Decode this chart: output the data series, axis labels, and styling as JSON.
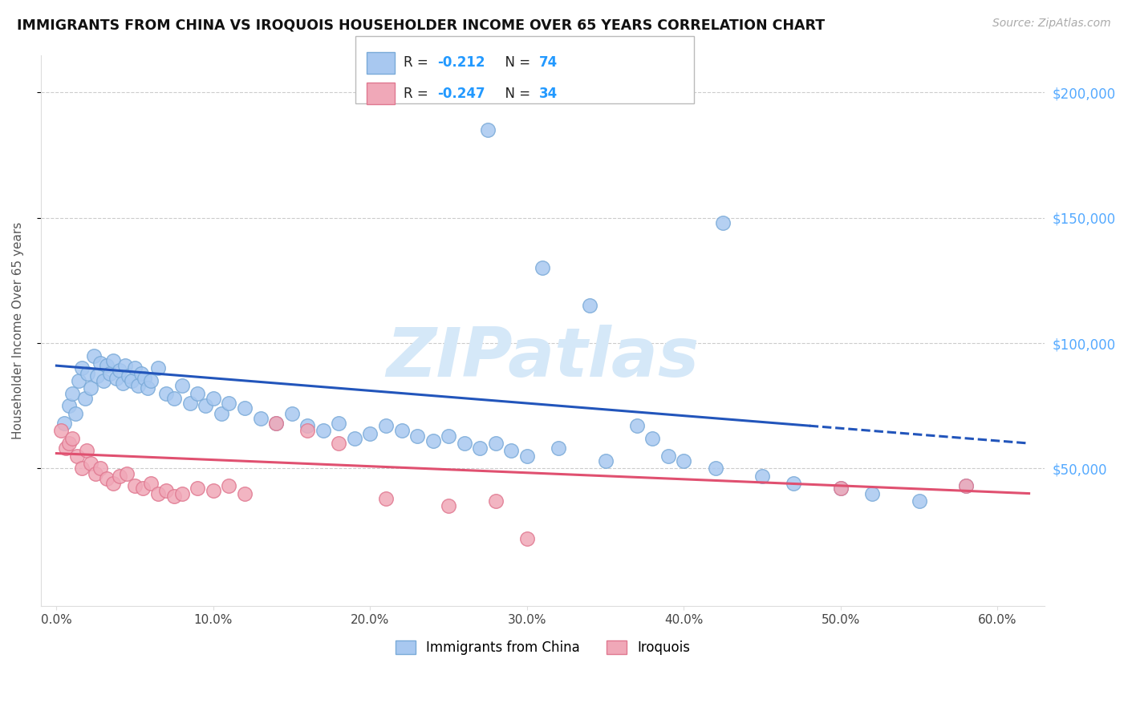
{
  "title": "IMMIGRANTS FROM CHINA VS IROQUOIS HOUSEHOLDER INCOME OVER 65 YEARS CORRELATION CHART",
  "source": "Source: ZipAtlas.com",
  "ylabel": "Householder Income Over 65 years",
  "xlabel_ticks": [
    "0.0%",
    "10.0%",
    "20.0%",
    "30.0%",
    "40.0%",
    "50.0%",
    "60.0%"
  ],
  "xlabel_vals": [
    0.0,
    10.0,
    20.0,
    30.0,
    40.0,
    50.0,
    60.0
  ],
  "yticks": [
    50000,
    100000,
    150000,
    200000
  ],
  "ylim": [
    -5000,
    215000
  ],
  "xlim": [
    -1.0,
    63.0
  ],
  "legend_label1": "Immigrants from China",
  "legend_label2": "Iroquois",
  "color_blue": "#a8c8f0",
  "color_blue_edge": "#7aaad8",
  "color_pink": "#f0a8b8",
  "color_pink_edge": "#e07890",
  "color_trendline_blue": "#2255bb",
  "color_trendline_pink": "#e05070",
  "color_axis_right": "#55aaff",
  "color_title": "#111111",
  "color_source": "#aaaaaa",
  "color_watermark": "#d5e8f8",
  "scatter_blue_x": [
    0.5,
    0.8,
    1.0,
    1.2,
    1.4,
    1.6,
    1.8,
    2.0,
    2.2,
    2.4,
    2.6,
    2.8,
    3.0,
    3.2,
    3.4,
    3.6,
    3.8,
    4.0,
    4.2,
    4.4,
    4.6,
    4.8,
    5.0,
    5.2,
    5.4,
    5.6,
    5.8,
    6.0,
    6.5,
    7.0,
    7.5,
    8.0,
    8.5,
    9.0,
    9.5,
    10.0,
    10.5,
    11.0,
    12.0,
    13.0,
    14.0,
    15.0,
    16.0,
    17.0,
    18.0,
    19.0,
    20.0,
    21.0,
    22.0,
    23.0,
    24.0,
    25.0,
    26.0,
    27.0,
    28.0,
    29.0,
    30.0,
    32.0,
    35.0,
    37.0,
    38.0,
    39.0,
    40.0,
    42.0,
    45.0,
    47.0,
    50.0,
    52.0,
    55.0,
    27.5,
    31.0,
    34.0,
    42.5,
    58.0
  ],
  "scatter_blue_y": [
    68000,
    75000,
    80000,
    72000,
    85000,
    90000,
    78000,
    88000,
    82000,
    95000,
    87000,
    92000,
    85000,
    91000,
    88000,
    93000,
    86000,
    89000,
    84000,
    91000,
    87000,
    85000,
    90000,
    83000,
    88000,
    86000,
    82000,
    85000,
    90000,
    80000,
    78000,
    83000,
    76000,
    80000,
    75000,
    78000,
    72000,
    76000,
    74000,
    70000,
    68000,
    72000,
    67000,
    65000,
    68000,
    62000,
    64000,
    67000,
    65000,
    63000,
    61000,
    63000,
    60000,
    58000,
    60000,
    57000,
    55000,
    58000,
    53000,
    67000,
    62000,
    55000,
    53000,
    50000,
    47000,
    44000,
    42000,
    40000,
    37000,
    185000,
    130000,
    115000,
    148000,
    43000
  ],
  "scatter_pink_x": [
    0.3,
    0.6,
    0.8,
    1.0,
    1.3,
    1.6,
    1.9,
    2.2,
    2.5,
    2.8,
    3.2,
    3.6,
    4.0,
    4.5,
    5.0,
    5.5,
    6.0,
    6.5,
    7.0,
    7.5,
    8.0,
    9.0,
    10.0,
    11.0,
    12.0,
    14.0,
    16.0,
    18.0,
    21.0,
    25.0,
    28.0,
    30.0,
    50.0,
    58.0
  ],
  "scatter_pink_y": [
    65000,
    58000,
    60000,
    62000,
    55000,
    50000,
    57000,
    52000,
    48000,
    50000,
    46000,
    44000,
    47000,
    48000,
    43000,
    42000,
    44000,
    40000,
    41000,
    39000,
    40000,
    42000,
    41000,
    43000,
    40000,
    68000,
    65000,
    60000,
    38000,
    35000,
    37000,
    22000,
    42000,
    43000
  ],
  "trendline_blue_x0": 0.0,
  "trendline_blue_x1": 60.0,
  "trendline_blue_y0": 91000,
  "trendline_blue_y1": 61000,
  "trendline_blue_solid_end": 48.0,
  "trendline_blue_dash_end": 62.0,
  "trendline_pink_x0": 0.0,
  "trendline_pink_x1": 62.0,
  "trendline_pink_y0": 56000,
  "trendline_pink_y1": 40000
}
